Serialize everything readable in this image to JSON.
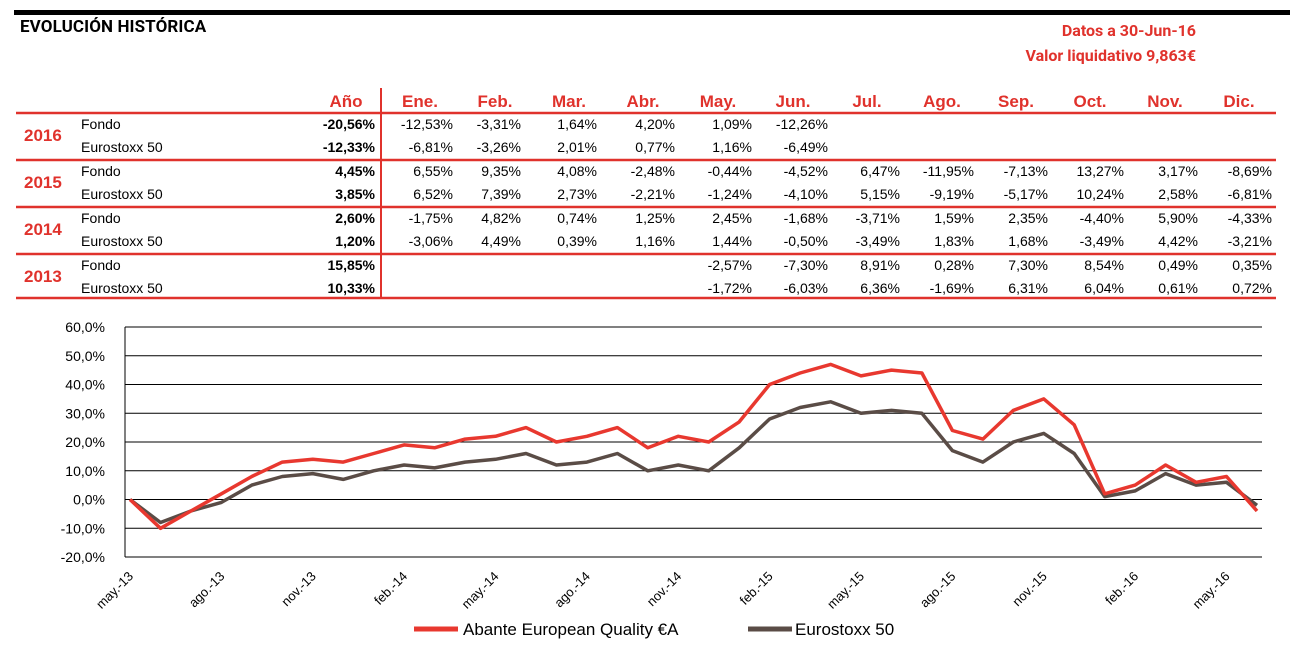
{
  "header": {
    "title": "EVOLUCIÓN HISTÓRICA",
    "date_line": "Datos a 30-Jun-16",
    "nav_line": "Valor liquidativo 9,863€"
  },
  "colors": {
    "accent": "#e0322c",
    "fund": "#e8382f",
    "index": "#5a4c46",
    "grid": "#000000"
  },
  "returns_table": {
    "columns": [
      "Año",
      "Ene.",
      "Feb.",
      "Mar.",
      "Abr.",
      "May.",
      "Jun.",
      "Jul.",
      "Ago.",
      "Sep.",
      "Oct.",
      "Nov.",
      "Dic."
    ],
    "groups": [
      {
        "year": "2016",
        "rows": [
          {
            "label": "Fondo",
            "annual": "-20,56%",
            "months": [
              "-12,53%",
              "-3,31%",
              "1,64%",
              "4,20%",
              "1,09%",
              "-12,26%",
              "",
              "",
              "",
              "",
              "",
              ""
            ]
          },
          {
            "label": "Eurostoxx 50",
            "annual": "-12,33%",
            "months": [
              "-6,81%",
              "-3,26%",
              "2,01%",
              "0,77%",
              "1,16%",
              "-6,49%",
              "",
              "",
              "",
              "",
              "",
              ""
            ]
          }
        ]
      },
      {
        "year": "2015",
        "rows": [
          {
            "label": "Fondo",
            "annual": "4,45%",
            "months": [
              "6,55%",
              "9,35%",
              "4,08%",
              "-2,48%",
              "-0,44%",
              "-4,52%",
              "6,47%",
              "-11,95%",
              "-7,13%",
              "13,27%",
              "3,17%",
              "-8,69%"
            ]
          },
          {
            "label": "Eurostoxx 50",
            "annual": "3,85%",
            "months": [
              "6,52%",
              "7,39%",
              "2,73%",
              "-2,21%",
              "-1,24%",
              "-4,10%",
              "5,15%",
              "-9,19%",
              "-5,17%",
              "10,24%",
              "2,58%",
              "-6,81%"
            ]
          }
        ]
      },
      {
        "year": "2014",
        "rows": [
          {
            "label": "Fondo",
            "annual": "2,60%",
            "months": [
              "-1,75%",
              "4,82%",
              "0,74%",
              "1,25%",
              "2,45%",
              "-1,68%",
              "-3,71%",
              "1,59%",
              "2,35%",
              "-4,40%",
              "5,90%",
              "-4,33%"
            ]
          },
          {
            "label": "Eurostoxx 50",
            "annual": "1,20%",
            "months": [
              "-3,06%",
              "4,49%",
              "0,39%",
              "1,16%",
              "1,44%",
              "-0,50%",
              "-3,49%",
              "1,83%",
              "1,68%",
              "-3,49%",
              "4,42%",
              "-3,21%"
            ]
          }
        ]
      },
      {
        "year": "2013",
        "rows": [
          {
            "label": "Fondo",
            "annual": "15,85%",
            "months": [
              "",
              "",
              "",
              "",
              "-2,57%",
              "-7,30%",
              "8,91%",
              "0,28%",
              "7,30%",
              "8,54%",
              "0,49%",
              "0,35%"
            ]
          },
          {
            "label": "Eurostoxx 50",
            "annual": "10,33%",
            "months": [
              "",
              "",
              "",
              "",
              "-1,72%",
              "-6,03%",
              "6,36%",
              "-1,69%",
              "6,31%",
              "6,04%",
              "0,61%",
              "0,72%"
            ]
          }
        ]
      }
    ]
  },
  "chart_data": {
    "type": "line",
    "title": "",
    "xlabel": "",
    "ylabel": "",
    "ylim": [
      -20,
      60
    ],
    "y_ticks": [
      -20,
      -10,
      0,
      10,
      20,
      30,
      40,
      50,
      60
    ],
    "y_tick_labels": [
      "-20,0%",
      "-10,0%",
      "0,0%",
      "10,0%",
      "20,0%",
      "30,0%",
      "40,0%",
      "50,0%",
      "60,0%"
    ],
    "grid": true,
    "legend_position": "bottom",
    "x_tick_labels": [
      "may.-13",
      "ago.-13",
      "nov.-13",
      "feb.-14",
      "may.-14",
      "ago.-14",
      "nov.-14",
      "feb.-15",
      "may.-15",
      "ago.-15",
      "nov.-15",
      "feb.-16",
      "may.-16"
    ],
    "x": [
      "may-13",
      "jun-13",
      "jul-13",
      "ago-13",
      "sep-13",
      "oct-13",
      "nov-13",
      "dic-13",
      "ene-14",
      "feb-14",
      "mar-14",
      "abr-14",
      "may-14",
      "jun-14",
      "jul-14",
      "ago-14",
      "sep-14",
      "oct-14",
      "nov-14",
      "dic-14",
      "ene-15",
      "feb-15",
      "mar-15",
      "abr-15",
      "may-15",
      "jun-15",
      "jul-15",
      "ago-15",
      "sep-15",
      "oct-15",
      "nov-15",
      "dic-15",
      "ene-16",
      "feb-16",
      "mar-16",
      "abr-16",
      "may-16",
      "jun-16"
    ],
    "series": [
      {
        "name": "Abante European Quality €A",
        "color": "#e8382f",
        "values": [
          0,
          -10,
          -4,
          2,
          8,
          13,
          14,
          13,
          16,
          19,
          18,
          21,
          22,
          25,
          20,
          22,
          25,
          18,
          22,
          20,
          27,
          40,
          44,
          47,
          43,
          45,
          44,
          24,
          21,
          31,
          35,
          26,
          2,
          5,
          12,
          6,
          8,
          -4
        ]
      },
      {
        "name": "Eurostoxx 50",
        "color": "#5a4c46",
        "values": [
          0,
          -8,
          -4,
          -1,
          5,
          8,
          9,
          7,
          10,
          12,
          11,
          13,
          14,
          16,
          12,
          13,
          16,
          10,
          12,
          10,
          18,
          28,
          32,
          34,
          30,
          31,
          30,
          17,
          13,
          20,
          23,
          16,
          1,
          3,
          9,
          5,
          6,
          -2
        ]
      }
    ]
  }
}
